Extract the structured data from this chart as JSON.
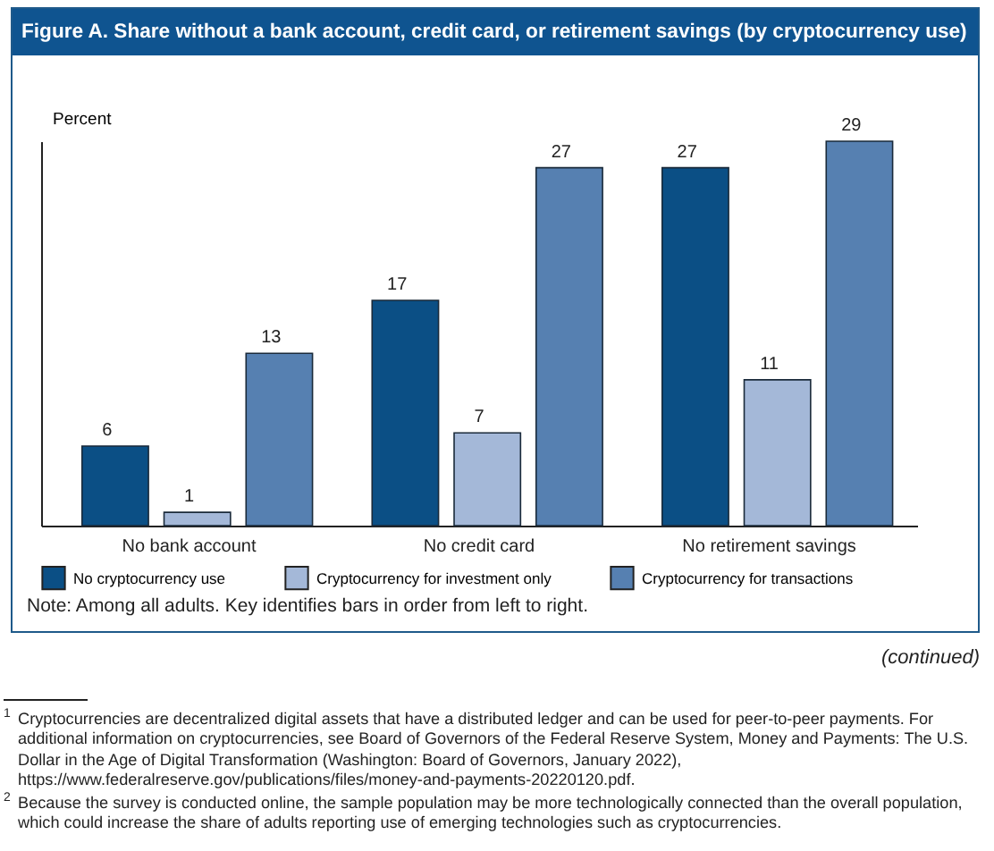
{
  "chart_data": {
    "type": "bar",
    "title": "Figure A. Share without a bank account, credit card, or retirement savings (by cryptocurrency use)",
    "ylabel": "Percent",
    "categories": [
      "No bank account",
      "No credit card",
      "No retirement savings"
    ],
    "series": [
      {
        "name": "No cryptocurrency use",
        "color": "#0b4f85",
        "values": [
          6,
          17,
          27
        ]
      },
      {
        "name": "Cryptocurrency for investment only",
        "color": "#a4b8d8",
        "values": [
          1,
          7,
          11
        ]
      },
      {
        "name": "Cryptocurrency for transactions",
        "color": "#5680b1",
        "values": [
          13,
          27,
          29
        ]
      }
    ],
    "data_labels": true,
    "legend": "bottom",
    "tick_labels": "x",
    "grid": false,
    "annotations": [
      "Note:  Among all adults. Key identifies bars in order from left to right.",
      "(continued)",
      "$^{1}$ Cryptocurrencies are decentralized digital assets that have a distributed ledger and can be used for peer-to-peer payments. For additional information on cryptocurrencies, see Board of Governors of the Federal Reserve System, Money and Payments: The U.S. Dollar in the Age of Digital Transformation (Washington: Board of Governors, January 2022), https://www.federalreserve.gov/publications/files/money-and-payments-20220120.pdf.",
      "$^{2}$ Because the survey is conducted online, the sample population may be more technologically connected than the overall population, which could increase the share of adults reporting use of emerging technologies such as cryptocurrencies."
    ]
  }
}
